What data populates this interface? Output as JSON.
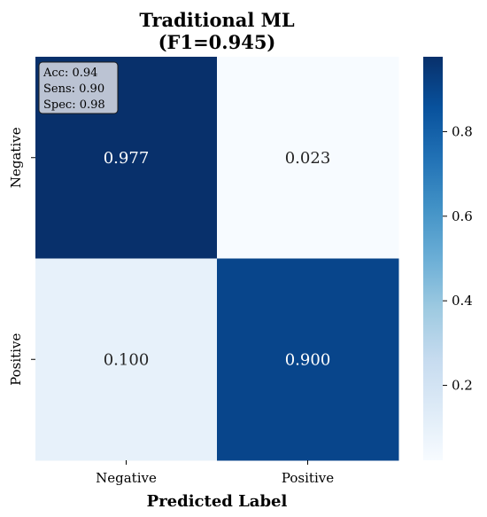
{
  "chart_data": {
    "type": "heatmap",
    "title_line1": "Traditional ML",
    "title_line2": "(F1=0.945)",
    "xlabel": "Predicted Label",
    "ylabel": "",
    "x_categories": [
      "Negative",
      "Positive"
    ],
    "y_categories": [
      "Negative",
      "Positive"
    ],
    "values": [
      [
        0.977,
        0.023
      ],
      [
        0.1,
        0.9
      ]
    ],
    "cell_labels": [
      [
        "0.977",
        "0.023"
      ],
      [
        "0.100",
        "0.900"
      ]
    ],
    "colormap": "Blues",
    "vmin": 0.023,
    "vmax": 0.977,
    "colorbar_ticks": [
      0.2,
      0.4,
      0.6,
      0.8
    ],
    "colorbar_tick_labels": [
      "0.2",
      "0.4",
      "0.6",
      "0.8"
    ],
    "annotation": {
      "lines": [
        "Acc: 0.94",
        "Sens: 0.90",
        "Spec: 0.98"
      ],
      "placement": "top-left"
    },
    "grid": false,
    "legend": "colorbar-right"
  }
}
